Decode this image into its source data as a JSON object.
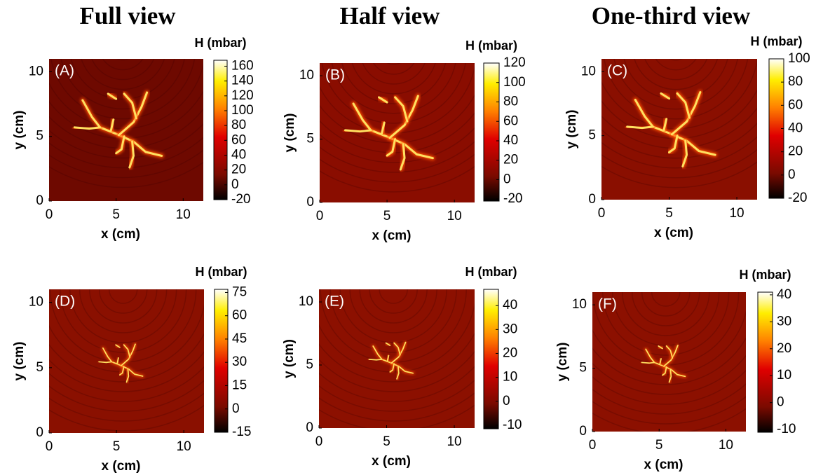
{
  "column_titles": [
    "Full view",
    "Half view",
    "One-third view"
  ],
  "panels": [
    {
      "label": "(A)",
      "xlabel": "x (cm)",
      "ylabel": "y (cm)",
      "xlim": [
        0,
        11.5
      ],
      "ylim": [
        0,
        11
      ],
      "xticks": [
        0,
        5,
        10
      ],
      "yticks": [
        0,
        5,
        10
      ],
      "colorbar": {
        "title": "H (mbar)",
        "lim": [
          -20,
          168
        ],
        "ticks": [
          -20,
          0,
          20,
          40,
          60,
          80,
          100,
          120,
          140,
          160
        ]
      }
    },
    {
      "label": "(B)",
      "xlabel": "x (cm)",
      "ylabel": "y (cm)",
      "xlim": [
        0,
        11.5
      ],
      "ylim": [
        0,
        11
      ],
      "xticks": [
        0,
        5,
        10
      ],
      "yticks": [
        0,
        5,
        10
      ],
      "colorbar": {
        "title": "H (mbar)",
        "lim": [
          -22,
          120
        ],
        "ticks": [
          -20,
          0,
          20,
          40,
          60,
          80,
          100,
          120
        ]
      }
    },
    {
      "label": "(C)",
      "xlabel": "x (cm)",
      "ylabel": "y (cm)",
      "xlim": [
        0,
        11.5
      ],
      "ylim": [
        0,
        11
      ],
      "xticks": [
        0,
        5,
        10
      ],
      "yticks": [
        0,
        5,
        10
      ],
      "colorbar": {
        "title": "H (mbar)",
        "lim": [
          -20,
          100
        ],
        "ticks": [
          -20,
          0,
          20,
          40,
          60,
          80,
          100
        ]
      }
    },
    {
      "label": "(D)",
      "xlabel": "x (cm)",
      "ylabel": "y (cm)",
      "xlim": [
        0,
        11.5
      ],
      "ylim": [
        0,
        11
      ],
      "xticks": [
        0,
        5,
        10
      ],
      "yticks": [
        0,
        5,
        10
      ],
      "colorbar": {
        "title": "H (mbar)",
        "lim": [
          -15,
          77
        ],
        "ticks": [
          -15,
          0,
          15,
          30,
          45,
          60,
          75
        ]
      }
    },
    {
      "label": "(E)",
      "xlabel": "x (cm)",
      "ylabel": "y (cm)",
      "xlim": [
        0,
        11.5
      ],
      "ylim": [
        0,
        11
      ],
      "xticks": [
        0,
        5,
        10
      ],
      "yticks": [
        0,
        5,
        10
      ],
      "colorbar": {
        "title": "H (mbar)",
        "lim": [
          -11.5,
          46.8
        ],
        "ticks": [
          -10,
          0,
          10,
          20,
          30,
          40
        ]
      }
    },
    {
      "label": "(F)",
      "xlabel": "x (cm)",
      "ylabel": "y (cm)",
      "xlim": [
        0,
        11.5
      ],
      "ylim": [
        0,
        11
      ],
      "xticks": [
        0,
        5,
        10
      ],
      "yticks": [
        0,
        5,
        10
      ],
      "colorbar": {
        "title": "H (mbar)",
        "lim": [
          -11,
          41
        ],
        "ticks": [
          -10,
          0,
          10,
          20,
          30,
          40
        ]
      }
    }
  ]
}
